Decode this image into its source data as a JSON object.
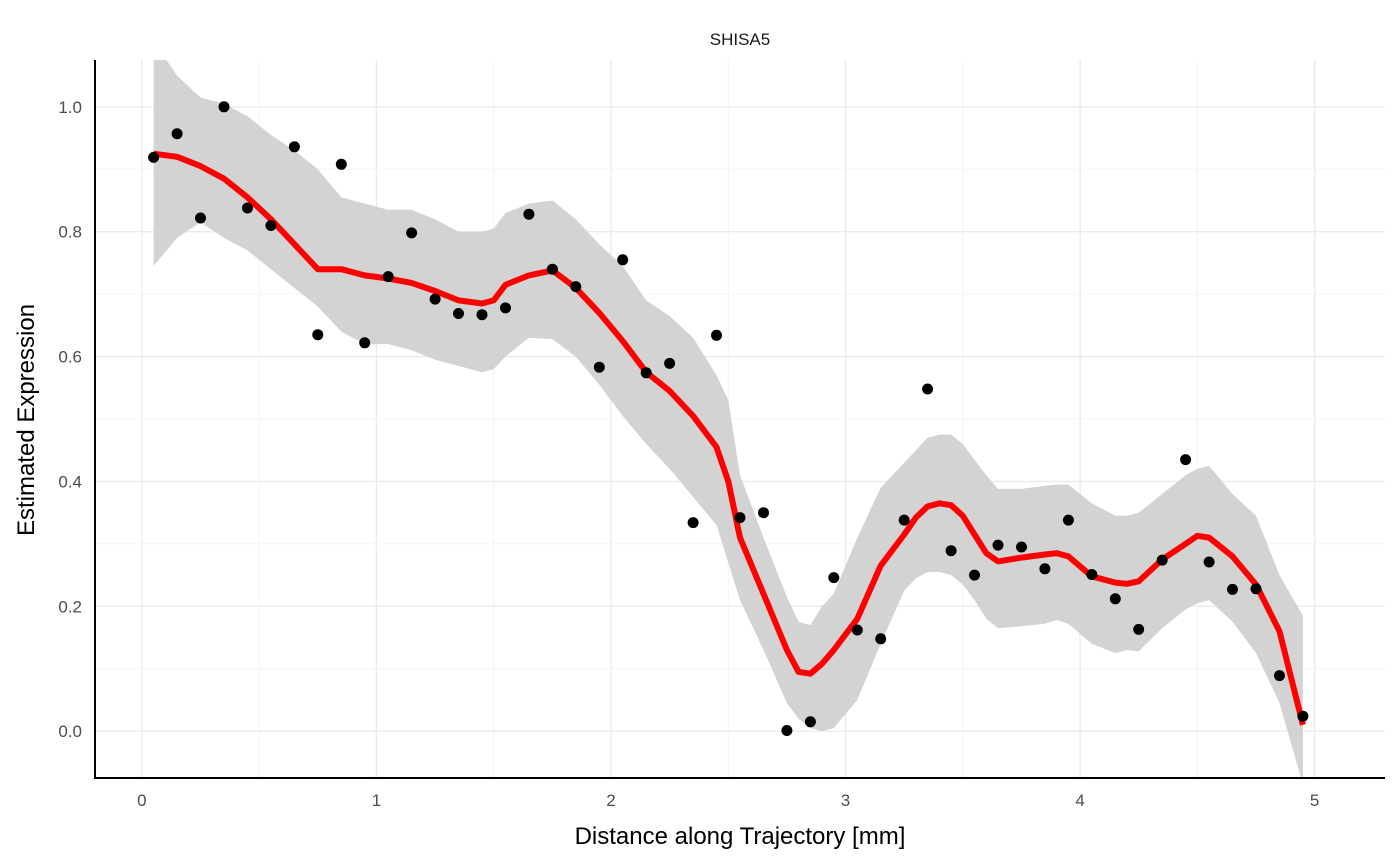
{
  "chart_data": {
    "type": "scatter",
    "title": "SHISA5",
    "xlabel": "Distance along Trajectory [mm]",
    "ylabel": "Estimated Expression",
    "xlim": [
      -0.2,
      5.3
    ],
    "ylim": [
      -0.075,
      1.075
    ],
    "x_ticks": [
      0,
      1,
      2,
      3,
      4,
      5
    ],
    "x_tick_labels": [
      "0",
      "1",
      "2",
      "3",
      "4",
      "5"
    ],
    "y_ticks": [
      0.0,
      0.2,
      0.4,
      0.6,
      0.8,
      1.0
    ],
    "y_tick_labels": [
      "0.0",
      "0.2",
      "0.4",
      "0.6",
      "0.8",
      "1.0"
    ],
    "grid": true,
    "colors": {
      "points": "#000000",
      "smooth_line": "#ff0000",
      "confidence_band": "#d3d3d3"
    },
    "points": {
      "x": [
        0.05,
        0.15,
        0.25,
        0.35,
        0.45,
        0.55,
        0.65,
        0.75,
        0.85,
        0.95,
        1.05,
        1.15,
        1.25,
        1.35,
        1.45,
        1.55,
        1.65,
        1.75,
        1.85,
        1.95,
        2.05,
        2.15,
        2.25,
        2.35,
        2.45,
        2.55,
        2.65,
        2.75,
        2.85,
        2.95,
        3.05,
        3.15,
        3.25,
        3.35,
        3.45,
        3.55,
        3.65,
        3.75,
        3.85,
        3.95,
        4.05,
        4.15,
        4.25,
        4.35,
        4.45,
        4.55,
        4.65,
        4.75,
        4.85,
        4.95
      ],
      "y": [
        0.919,
        0.957,
        0.822,
        1.0,
        0.838,
        0.81,
        0.936,
        0.635,
        0.908,
        0.622,
        0.728,
        0.798,
        0.692,
        0.669,
        0.667,
        0.678,
        0.828,
        0.74,
        0.712,
        0.583,
        0.755,
        0.574,
        0.589,
        0.334,
        0.634,
        0.342,
        0.35,
        0.001,
        0.015,
        0.246,
        0.162,
        0.148,
        0.338,
        0.548,
        0.289,
        0.25,
        0.298,
        0.295,
        0.26,
        0.338,
        0.251,
        0.212,
        0.163,
        0.274,
        0.435,
        0.271,
        0.227,
        0.228,
        0.089,
        0.024
      ]
    },
    "smooth": {
      "x": [
        0.05,
        0.15,
        0.25,
        0.35,
        0.45,
        0.55,
        0.65,
        0.75,
        0.85,
        0.95,
        1.05,
        1.15,
        1.25,
        1.35,
        1.45,
        1.5,
        1.55,
        1.65,
        1.75,
        1.85,
        1.95,
        2.05,
        2.15,
        2.25,
        2.35,
        2.45,
        2.5,
        2.55,
        2.65,
        2.75,
        2.8,
        2.85,
        2.9,
        2.95,
        3.05,
        3.15,
        3.25,
        3.3,
        3.35,
        3.4,
        3.45,
        3.5,
        3.55,
        3.6,
        3.65,
        3.75,
        3.85,
        3.9,
        3.95,
        4.05,
        4.15,
        4.2,
        4.25,
        4.35,
        4.45,
        4.5,
        4.55,
        4.65,
        4.75,
        4.85,
        4.95
      ],
      "y": [
        0.925,
        0.92,
        0.905,
        0.885,
        0.855,
        0.82,
        0.78,
        0.74,
        0.74,
        0.73,
        0.725,
        0.718,
        0.705,
        0.69,
        0.685,
        0.69,
        0.715,
        0.73,
        0.738,
        0.71,
        0.67,
        0.625,
        0.575,
        0.545,
        0.505,
        0.455,
        0.4,
        0.31,
        0.22,
        0.13,
        0.095,
        0.092,
        0.108,
        0.13,
        0.18,
        0.265,
        0.315,
        0.342,
        0.36,
        0.365,
        0.362,
        0.345,
        0.315,
        0.285,
        0.272,
        0.278,
        0.283,
        0.285,
        0.28,
        0.248,
        0.238,
        0.236,
        0.24,
        0.275,
        0.3,
        0.313,
        0.31,
        0.28,
        0.235,
        0.16,
        0.01
      ],
      "lower": [
        0.745,
        0.79,
        0.815,
        0.79,
        0.77,
        0.74,
        0.71,
        0.68,
        0.64,
        0.62,
        0.62,
        0.61,
        0.595,
        0.585,
        0.575,
        0.58,
        0.6,
        0.63,
        0.628,
        0.6,
        0.555,
        0.505,
        0.46,
        0.42,
        0.375,
        0.33,
        0.27,
        0.21,
        0.13,
        0.045,
        0.02,
        0.005,
        0.0,
        0.005,
        0.05,
        0.14,
        0.225,
        0.245,
        0.255,
        0.255,
        0.25,
        0.235,
        0.21,
        0.18,
        0.165,
        0.168,
        0.172,
        0.178,
        0.172,
        0.14,
        0.125,
        0.13,
        0.128,
        0.165,
        0.195,
        0.205,
        0.21,
        0.175,
        0.125,
        0.045,
        -0.085
      ],
      "upper": [
        1.105,
        1.05,
        1.015,
        1.005,
        0.985,
        0.955,
        0.93,
        0.9,
        0.855,
        0.845,
        0.835,
        0.835,
        0.82,
        0.8,
        0.8,
        0.805,
        0.83,
        0.845,
        0.85,
        0.82,
        0.78,
        0.745,
        0.69,
        0.665,
        0.63,
        0.57,
        0.53,
        0.41,
        0.31,
        0.215,
        0.175,
        0.17,
        0.2,
        0.22,
        0.31,
        0.39,
        0.43,
        0.45,
        0.47,
        0.475,
        0.475,
        0.46,
        0.435,
        0.41,
        0.388,
        0.388,
        0.393,
        0.395,
        0.395,
        0.365,
        0.345,
        0.345,
        0.35,
        0.38,
        0.41,
        0.42,
        0.425,
        0.38,
        0.345,
        0.25,
        0.185
      ]
    }
  }
}
